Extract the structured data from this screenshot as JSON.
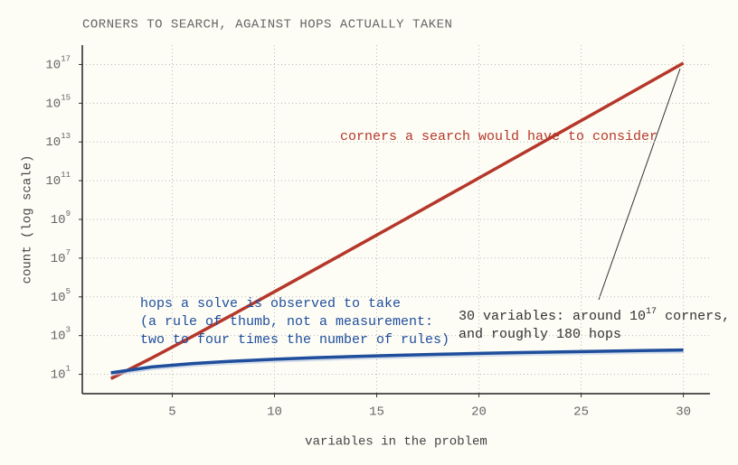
{
  "chart_data": {
    "type": "line",
    "title": "CORNERS TO SEARCH, AGAINST HOPS ACTUALLY TAKEN",
    "xlabel": "variables in the problem",
    "ylabel": "count (log scale)",
    "log_y": true,
    "grid": true,
    "x": [
      2,
      4,
      6,
      8,
      10,
      12,
      14,
      16,
      18,
      20,
      22,
      24,
      26,
      28,
      30
    ],
    "series": [
      {
        "name": "corners a search would have to consider",
        "color": "#b5372a",
        "values": [
          6,
          70,
          924,
          12870,
          184756,
          2704156,
          40116600,
          601080390,
          9075135300,
          137846528820,
          2104098963720,
          32247603683100,
          495918532948104,
          7648690600760440,
          118264581564861424
        ]
      },
      {
        "name": "hops a solve is observed to take",
        "color": "#1f4e9c",
        "values": [
          12,
          24,
          36,
          48,
          60,
          72,
          84,
          96,
          108,
          120,
          132,
          144,
          156,
          168,
          180
        ],
        "band_low": [
          8,
          16,
          24,
          32,
          40,
          48,
          56,
          64,
          72,
          80,
          88,
          96,
          104,
          112,
          120
        ],
        "band_color": "#b9c8e3"
      }
    ],
    "series_notes": [
      "(a rule of thumb, not a measurement:",
      "two to four times the number of rules)"
    ],
    "annotation": {
      "line1": "30 variables: around 10",
      "sup": "17",
      "line1_end": " corners,",
      "line2": "and roughly 180 hops"
    },
    "xlim": [
      0.6,
      31.3
    ],
    "xticks": [
      5,
      10,
      15,
      20,
      25,
      30
    ],
    "ylim": [
      1,
      1e+18
    ],
    "yticks": [
      {
        "value": 10,
        "label": "10",
        "sup": "1"
      },
      {
        "value": 1000,
        "label": "10",
        "sup": "3"
      },
      {
        "value": 100000,
        "label": "10",
        "sup": "5"
      },
      {
        "value": 10000000,
        "label": "10",
        "sup": "7"
      },
      {
        "value": 1000000000,
        "label": "10",
        "sup": "9"
      },
      {
        "value": 100000000000,
        "label": "10",
        "sup": "11"
      },
      {
        "value": 10000000000000,
        "label": "10",
        "sup": "13"
      },
      {
        "value": 1000000000000000,
        "label": "10",
        "sup": "15"
      },
      {
        "value": 100000000000000000,
        "label": "10",
        "sup": "17"
      }
    ]
  }
}
